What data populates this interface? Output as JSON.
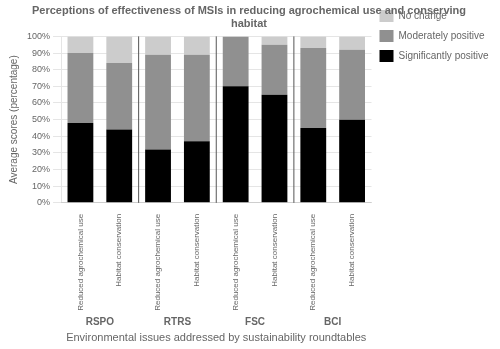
{
  "chart_data": {
    "type": "bar",
    "stacked": true,
    "title": "Perceptions of effectiveness of MSIs in reducing agrochemical use and conserving\nhabitat",
    "xlabel": "Environmental issues addressed by sustainability roundtables",
    "ylabel": "Average scores (percentage)",
    "categories": [
      "Reduced agrochemical use",
      "Habitat conservation",
      "Reduced agrochemical use",
      "Habitat conservation",
      "Reduced agrochemical use",
      "Habitat conservation",
      "Reduced agrochemical use",
      "Habitat conservation"
    ],
    "annotations": [
      "RSPO",
      "RTRS",
      "FSC",
      "BCI"
    ],
    "series": [
      {
        "name": "Significantly positive",
        "color": "#000000",
        "values": [
          48,
          44,
          32,
          37,
          70,
          65,
          45,
          50
        ]
      },
      {
        "name": "Moderately positive",
        "color": "#909090",
        "values": [
          42,
          40,
          57,
          52,
          30,
          30,
          48,
          42
        ]
      },
      {
        "name": "No change",
        "color": "#cccccc",
        "values": [
          10,
          16,
          11,
          11,
          0,
          5,
          7,
          8
        ]
      }
    ],
    "ylim": [
      0,
      100
    ],
    "yticks": [
      {
        "value": 0,
        "label": "0%"
      },
      {
        "value": 10,
        "label": "10%"
      },
      {
        "value": 20,
        "label": "20%"
      },
      {
        "value": 30,
        "label": "30%"
      },
      {
        "value": 40,
        "label": "40%"
      },
      {
        "value": 50,
        "label": "50%"
      },
      {
        "value": 60,
        "label": "60%"
      },
      {
        "value": 70,
        "label": "70%"
      },
      {
        "value": 80,
        "label": "80%"
      },
      {
        "value": 90,
        "label": "90%"
      },
      {
        "value": 100,
        "label": "100%"
      }
    ],
    "grid": "y",
    "legend": "right"
  }
}
